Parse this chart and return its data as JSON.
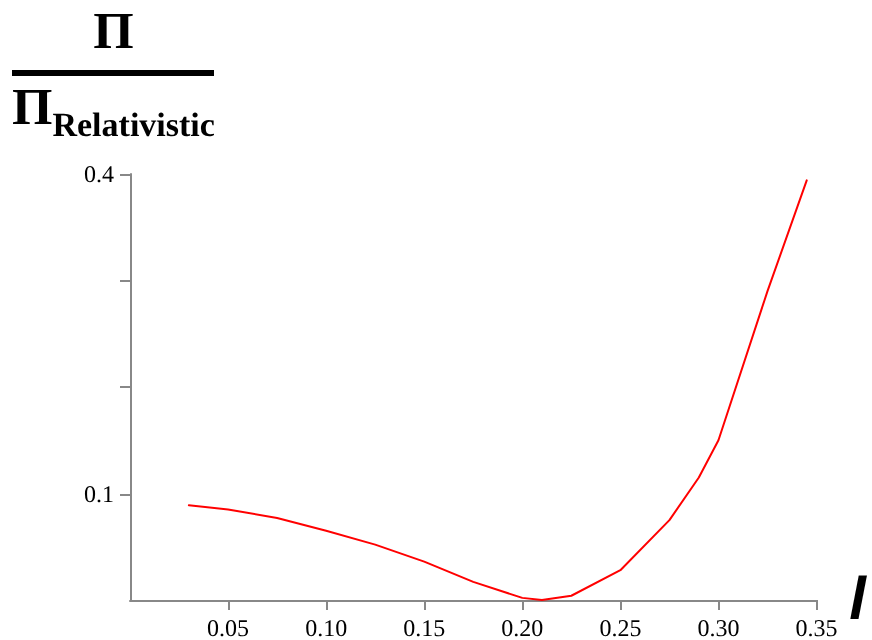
{
  "chart_data": {
    "type": "line",
    "ylabel": "Π Π$_{Relativistic}$",
    "xlabel": "l",
    "x": [
      0.03,
      0.05,
      0.075,
      0.1,
      0.125,
      0.15,
      0.175,
      0.2,
      0.21,
      0.225,
      0.25,
      0.275,
      0.29,
      0.3,
      0.325,
      0.345
    ],
    "series": [
      {
        "color": "#ff0000",
        "values": [
          0.089,
          0.085,
          0.077,
          0.065,
          0.052,
          0.036,
          0.017,
          0.002,
          0.0,
          0.004,
          0.028,
          0.075,
          0.115,
          0.15,
          0.29,
          0.394
        ]
      }
    ],
    "xlim": [
      0,
      0.35
    ],
    "ylim": [
      0,
      0.4
    ],
    "xticks": [
      0.05,
      {
        "value": 0.1,
        "label": "0.10"
      },
      0.15,
      {
        "value": 0.2,
        "label": "0.20"
      },
      0.25,
      {
        "value": 0.3,
        "label": "0.30"
      },
      0.35
    ],
    "yticks": [
      0.1,
      {
        "value": 0.2,
        "label": null
      },
      {
        "value": 0.3,
        "label": null
      },
      0.4
    ],
    "grid": false,
    "marker": "none",
    "line_style": "solid"
  }
}
